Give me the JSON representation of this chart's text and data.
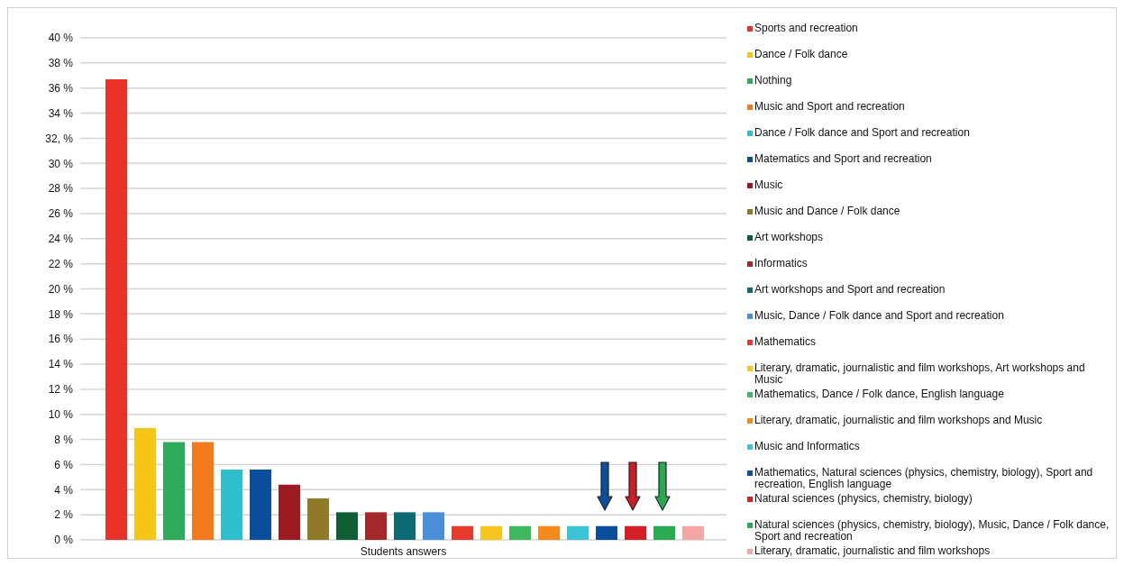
{
  "chart_data": {
    "type": "bar",
    "categories": [
      "Students answers"
    ],
    "ylim": [
      0,
      40
    ],
    "yticks": [
      {
        "value": 0,
        "label": "0 %"
      },
      {
        "value": 2,
        "label": "2 %"
      },
      {
        "value": 4,
        "label": "4 %"
      },
      {
        "value": 6,
        "label": "6 %"
      },
      {
        "value": 8,
        "label": "8 %"
      },
      {
        "value": 10,
        "label": "10 %"
      },
      {
        "value": 12,
        "label": "12 %"
      },
      {
        "value": 14,
        "label": "14 %"
      },
      {
        "value": 16,
        "label": "16 %"
      },
      {
        "value": 18,
        "label": "18 %"
      },
      {
        "value": 20,
        "label": "20 %"
      },
      {
        "value": 22,
        "label": "22 %"
      },
      {
        "value": 24,
        "label": "24 %"
      },
      {
        "value": 26,
        "label": "26 %"
      },
      {
        "value": 28,
        "label": "28 %"
      },
      {
        "value": 30,
        "label": "30 %"
      },
      {
        "value": 32,
        "label": "32, %"
      },
      {
        "value": 34,
        "label": "34 %"
      },
      {
        "value": 36,
        "label": "36 %"
      },
      {
        "value": 38,
        "label": "38 %"
      },
      {
        "value": 40,
        "label": "40 %"
      }
    ],
    "grid": "y",
    "legend": "right",
    "series": [
      {
        "name": "Sports and recreation",
        "color": "#e8322a",
        "values": [
          36.7
        ]
      },
      {
        "name": "Dance / Folk dance",
        "color": "#f5c518",
        "values": [
          8.9
        ]
      },
      {
        "name": "Nothing",
        "color": "#2eaa5a",
        "values": [
          7.8
        ]
      },
      {
        "name": "Music and Sport and recreation",
        "color": "#f47a20",
        "values": [
          7.8
        ]
      },
      {
        "name": "Dance / Folk dance and Sport and recreation",
        "color": "#2fbfcc",
        "values": [
          5.6
        ]
      },
      {
        "name": "Matematics and Sport and recreation",
        "color": "#0b4f9c",
        "values": [
          5.6
        ]
      },
      {
        "name": "Music",
        "color": "#9b1c20",
        "values": [
          4.4
        ]
      },
      {
        "name": "Music and Dance / Folk dance",
        "color": "#8f7a2a",
        "values": [
          3.3
        ]
      },
      {
        "name": "Art workshops",
        "color": "#0f5e35",
        "values": [
          2.2
        ]
      },
      {
        "name": "Informatics",
        "color": "#a2282a",
        "values": [
          2.2
        ]
      },
      {
        "name": "Art workshops and Sport and recreation",
        "color": "#0e6a72",
        "values": [
          2.2
        ]
      },
      {
        "name": "Music, Dance / Folk dance and Sport and recreation",
        "color": "#4a8fd8",
        "values": [
          2.2
        ]
      },
      {
        "name": "Mathematics",
        "color": "#e8392f",
        "values": [
          1.1
        ]
      },
      {
        "name": "Literary, dramatic, journalistic and film workshops, Art workshops and Music",
        "color": "#f7c520",
        "values": [
          1.1
        ]
      },
      {
        "name": "Mathematics, Dance / Folk dance, English language",
        "color": "#40b860",
        "values": [
          1.1
        ]
      },
      {
        "name": "Literary, dramatic, journalistic and film workshops and Music",
        "color": "#f58a1f",
        "values": [
          1.1
        ]
      },
      {
        "name": "Music and Informatics",
        "color": "#3cc4d4",
        "values": [
          1.1
        ]
      },
      {
        "name": "Mathematics, Natural sciences (physics, chemistry, biology), Sport and recreation, English language",
        "color": "#0b4f9c",
        "values": [
          1.1
        ]
      },
      {
        "name": "Natural sciences (physics, chemistry, biology)",
        "color": "#d51f26",
        "values": [
          1.1
        ]
      },
      {
        "name": "Natural sciences (physics, chemistry, biology), Music, Dance / Folk dance, Sport and recreation",
        "color": "#2aaa50",
        "values": [
          1.1
        ]
      },
      {
        "name": "Literary, dramatic, journalistic and film workshops",
        "color": "#f4a6a6",
        "values": [
          1.1
        ]
      }
    ]
  }
}
